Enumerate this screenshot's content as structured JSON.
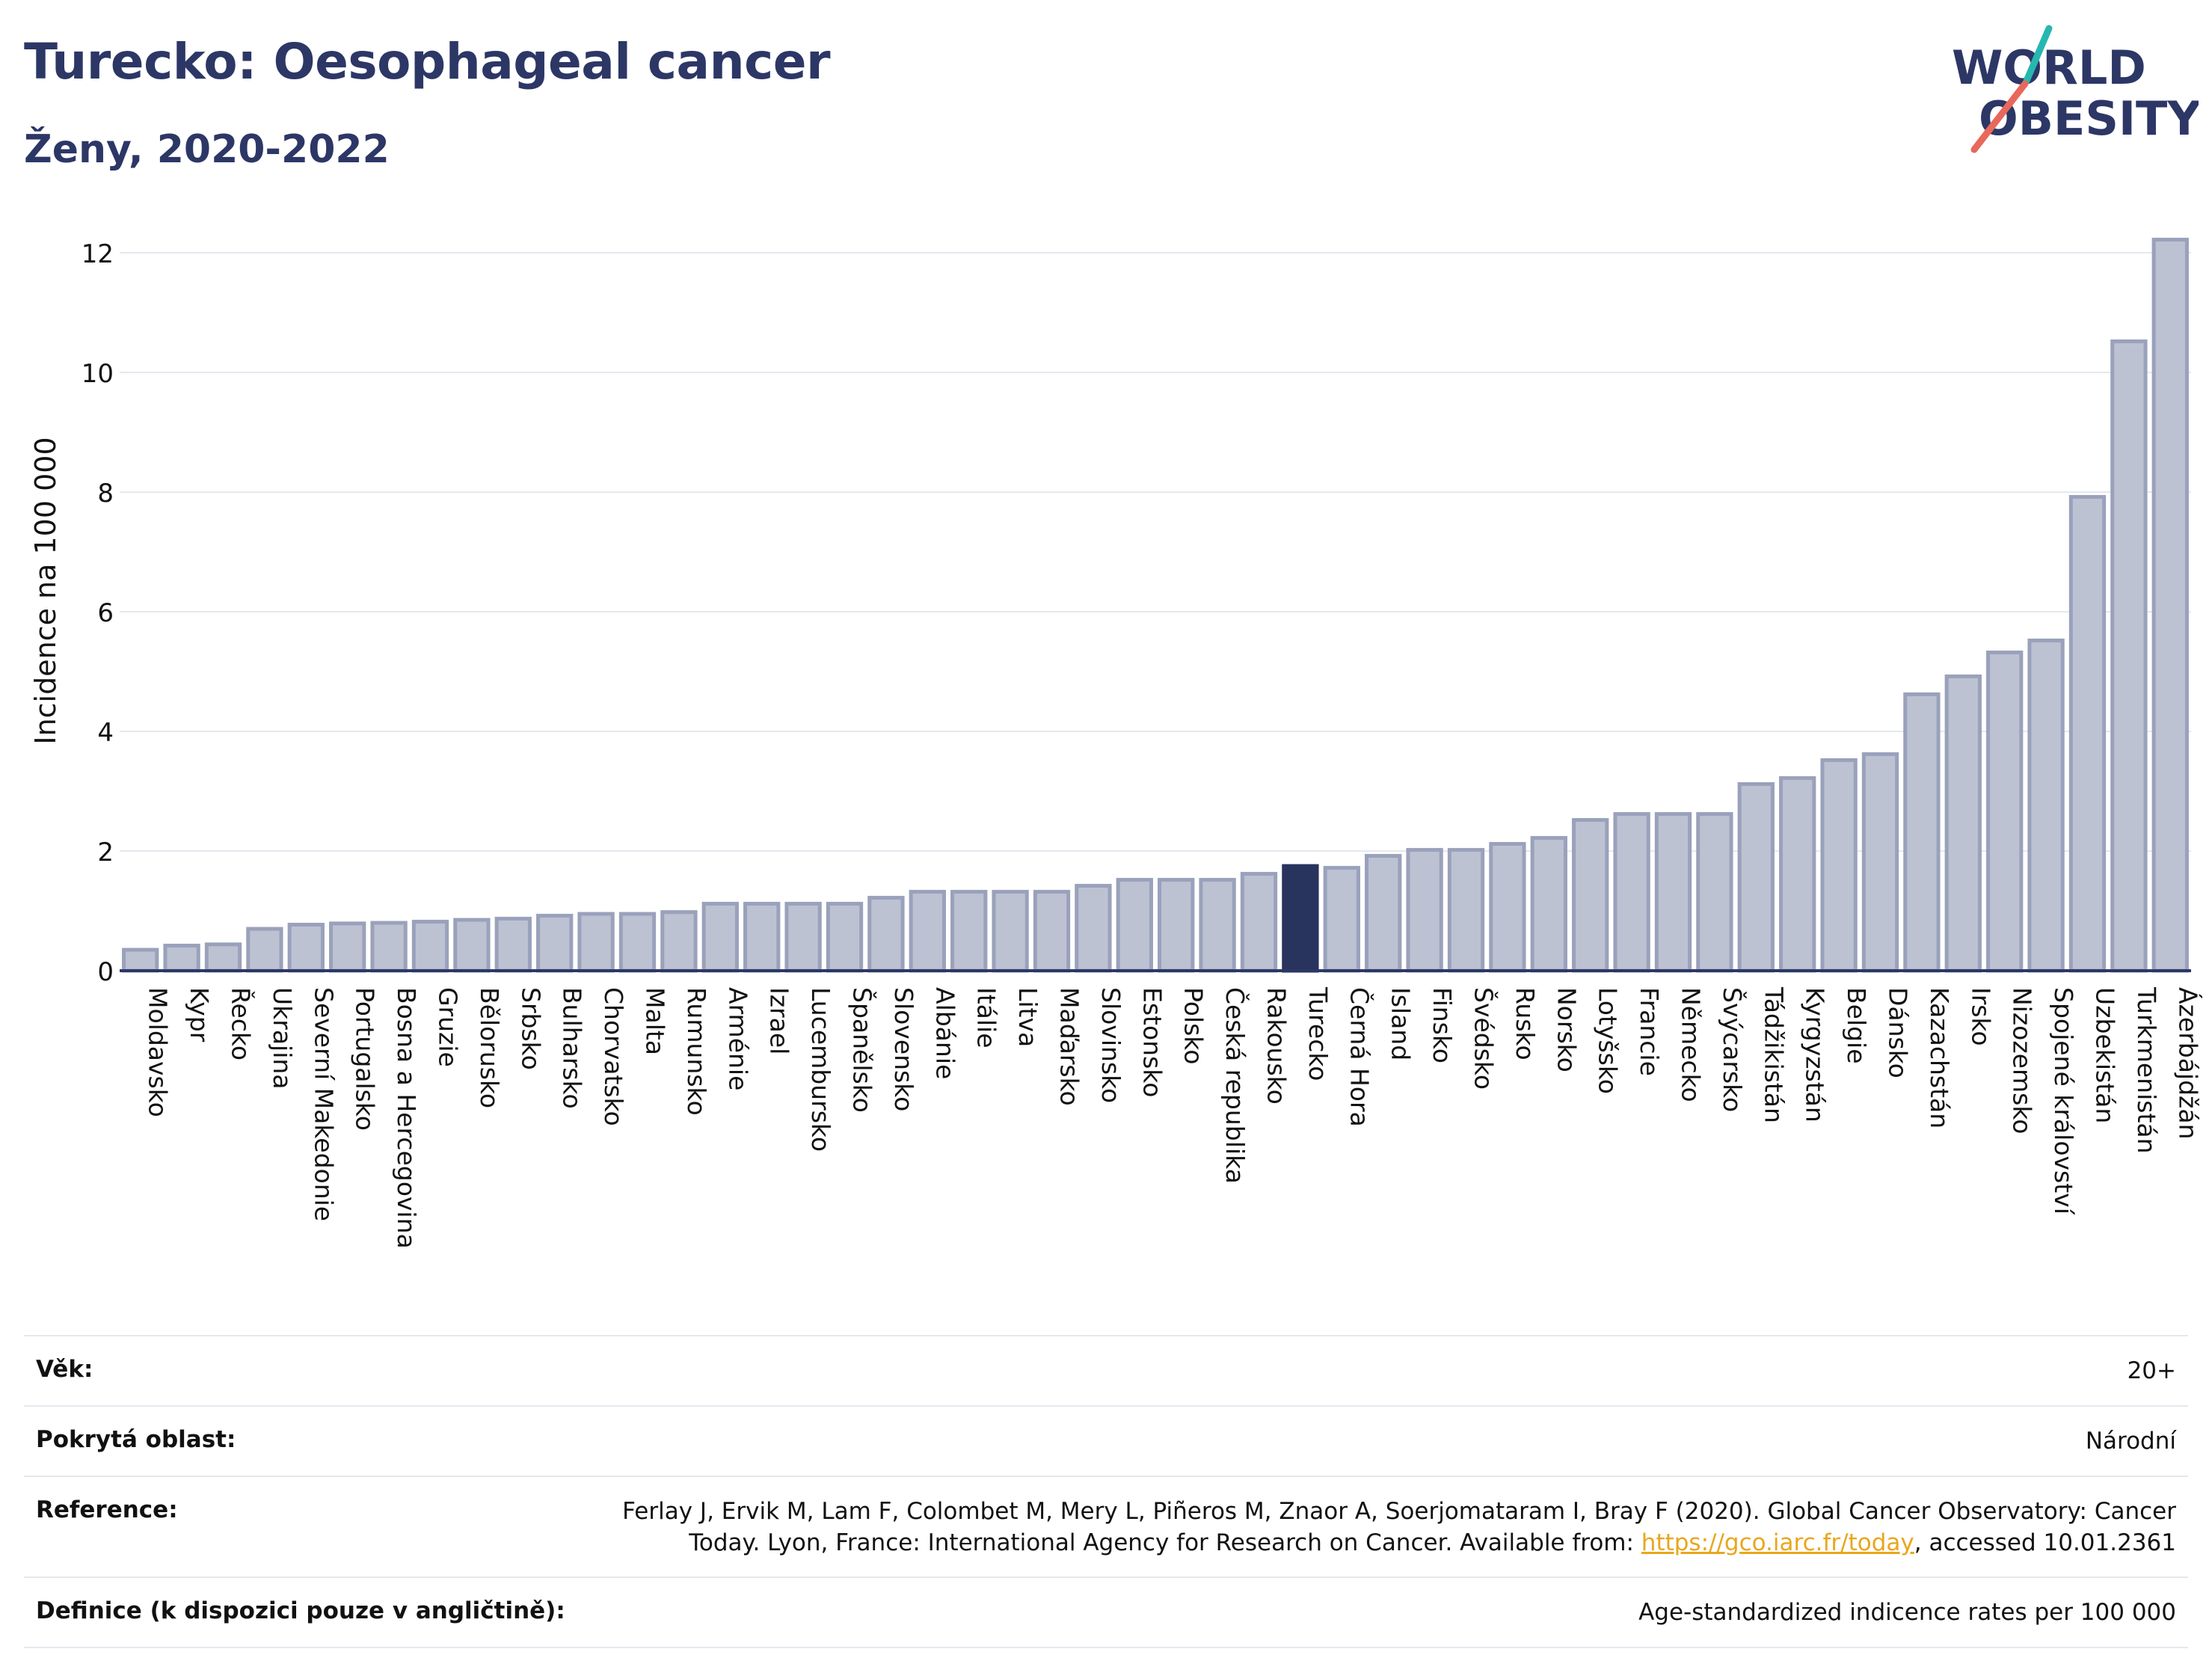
{
  "header": {
    "title": "Turecko: Oesophageal cancer",
    "subtitle": "Ženy, 2020-2022"
  },
  "logo": {
    "line1": "WORLD",
    "line2": "OBESITY",
    "colors": {
      "text": "#2c3766",
      "teal": "#27b7b0",
      "coral": "#e8685c"
    }
  },
  "colors": {
    "bar_fill": "#bcc2d2",
    "bar_stroke": "#9aa1bb",
    "highlight_fill": "#28335e",
    "axis": "#2c3766",
    "grid": "#e6e8ef"
  },
  "chart_data": {
    "type": "bar",
    "title": "Turecko: Oesophageal cancer",
    "subtitle": "Ženy, 2020-2022",
    "ylabel": "Incidence na 100 000",
    "xlabel": "",
    "ylim": [
      0,
      12.6
    ],
    "yticks": [
      0,
      2,
      4,
      6,
      8,
      10,
      12
    ],
    "grid": true,
    "highlight": "Turecko",
    "categories": [
      "Moldavsko",
      "Kypr",
      "Řecko",
      "Ukrajina",
      "Severní Makedonie",
      "Portugalsko",
      "Bosna a Hercegovina",
      "Gruzie",
      "Bělorusko",
      "Srbsko",
      "Bulharsko",
      "Chorvatsko",
      "Malta",
      "Rumunsko",
      "Arménie",
      "Izrael",
      "Lucembursko",
      "Španělsko",
      "Slovensko",
      "Albánie",
      "Itálie",
      "Litva",
      "Maďarsko",
      "Slovinsko",
      "Estonsko",
      "Polsko",
      "Česká republika",
      "Rakousko",
      "Turecko",
      "Černá Hora",
      "Island",
      "Finsko",
      "Švédsko",
      "Rusko",
      "Norsko",
      "Lotyšsko",
      "Francie",
      "Německo",
      "Švýcarsko",
      "Tádžikistán",
      "Kyrgyzstán",
      "Belgie",
      "Dánsko",
      "Kazachstán",
      "Irsko",
      "Nizozemsko",
      "Spojené království",
      "Uzbekistán",
      "Turkmenistán",
      "Ázerbájdžán"
    ],
    "values": [
      0.35,
      0.42,
      0.44,
      0.7,
      0.77,
      0.79,
      0.8,
      0.82,
      0.85,
      0.87,
      0.92,
      0.95,
      0.95,
      0.98,
      1.12,
      1.12,
      1.12,
      1.12,
      1.22,
      1.32,
      1.32,
      1.32,
      1.32,
      1.42,
      1.52,
      1.52,
      1.52,
      1.62,
      1.75,
      1.72,
      1.92,
      2.02,
      2.02,
      2.12,
      2.22,
      2.52,
      2.62,
      2.62,
      2.62,
      3.12,
      3.22,
      3.52,
      3.62,
      4.62,
      4.92,
      5.32,
      5.52,
      7.92,
      10.52,
      12.22
    ]
  },
  "footer": {
    "rows": [
      {
        "label": "Věk:",
        "value": "20+"
      },
      {
        "label": "Pokrytá oblast:",
        "value": "Národní"
      },
      {
        "label": "Reference:",
        "value_before": "Ferlay J, Ervik M, Lam F, Colombet M, Mery L, Piñeros M, Znaor A, Soerjomataram I, Bray F (2020). Global Cancer Observatory: Cancer Today. Lyon, France: International Agency for Research on Cancer. Available from: ",
        "link": "https://gco.iarc.fr/today",
        "value_after": ", accessed 10.01.2361"
      },
      {
        "label": "Definice (k dispozici pouze v angličtině):",
        "value": "Age-standardized indicence rates per 100 000"
      }
    ]
  }
}
